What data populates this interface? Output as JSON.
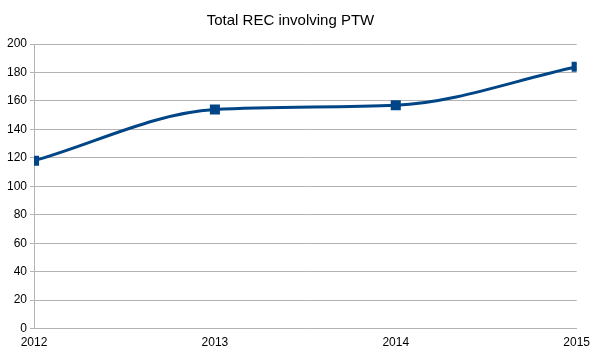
{
  "chart_data": {
    "type": "line",
    "title": "Total REC involving PTW",
    "categories": [
      "2012",
      "2013",
      "2014",
      "2015"
    ],
    "values": [
      118,
      154,
      157,
      184
    ],
    "color": "#004586",
    "ylim": [
      0,
      200
    ],
    "yticks": [
      0,
      20,
      40,
      60,
      80,
      100,
      120,
      140,
      160,
      180,
      200
    ],
    "grid": true,
    "marker": "square",
    "line_style": "solid"
  }
}
